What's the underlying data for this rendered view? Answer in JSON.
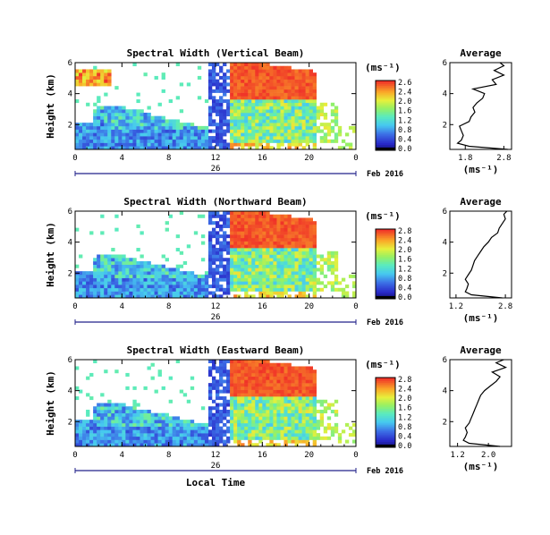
{
  "chart_data": [
    {
      "type": "heatmap",
      "title": "Spectral Width (Vertical Beam)",
      "ylabel": "Height (km)",
      "yticks": [
        "6",
        "4",
        "2"
      ],
      "ylim": [
        0.4,
        6
      ],
      "xticks": [
        "0",
        "4",
        "8",
        "12",
        "16",
        "20",
        "0"
      ],
      "xlim": [
        0,
        24
      ],
      "day_label": "26",
      "date_label": "Feb 2016",
      "colorbar_unit": "(ms⁻¹)",
      "colorbar_ticks": [
        "2.6",
        "2.4",
        "2.0",
        "1.6",
        "1.2",
        "0.8",
        "0.4",
        "0.0"
      ],
      "avg_title": "Average",
      "avg_xticks": [
        "1.8",
        "2.8"
      ],
      "avg_xlabel": "(ms⁻¹)",
      "avg_yticks": [
        "6",
        "4",
        "2"
      ],
      "avg_xlim": [
        1.4,
        3.0
      ],
      "avg_profile": {
        "height": [
          0.4,
          0.6,
          0.8,
          1.0,
          1.3,
          1.6,
          1.9,
          2.2,
          2.5,
          2.8,
          3.1,
          3.4,
          3.7,
          4.0,
          4.3,
          4.6,
          4.9,
          5.2,
          5.5,
          5.8,
          6.0
        ],
        "value": [
          2.9,
          1.9,
          1.6,
          1.7,
          1.75,
          1.7,
          1.65,
          1.9,
          1.95,
          2.05,
          2.0,
          2.1,
          2.25,
          2.3,
          2.0,
          2.6,
          2.5,
          2.8,
          2.55,
          2.8,
          2.7
        ]
      }
    },
    {
      "type": "heatmap",
      "title": "Spectral Width (Northward Beam)",
      "ylabel": "Height (km)",
      "yticks": [
        "6",
        "4",
        "2"
      ],
      "ylim": [
        0.4,
        6
      ],
      "xticks": [
        "0",
        "4",
        "8",
        "12",
        "16",
        "20",
        "0"
      ],
      "xlim": [
        0,
        24
      ],
      "day_label": "26",
      "date_label": "Feb 2016",
      "colorbar_unit": "(ms⁻¹)",
      "colorbar_ticks": [
        "2.8",
        "2.4",
        "2.0",
        "1.6",
        "1.2",
        "0.8",
        "0.4",
        "0.0"
      ],
      "avg_title": "Average",
      "avg_xticks": [
        "1.2",
        "2.8"
      ],
      "avg_xlabel": "(ms⁻¹)",
      "avg_yticks": [
        "6",
        "4",
        "2"
      ],
      "avg_xlim": [
        1.0,
        3.0
      ],
      "avg_profile": {
        "height": [
          0.4,
          0.6,
          0.8,
          1.0,
          1.3,
          1.6,
          1.9,
          2.2,
          2.5,
          2.8,
          3.1,
          3.4,
          3.7,
          4.0,
          4.3,
          4.6,
          4.9,
          5.2,
          5.5,
          5.8,
          6.0
        ],
        "value": [
          2.7,
          1.7,
          1.5,
          1.55,
          1.6,
          1.5,
          1.6,
          1.7,
          1.75,
          1.8,
          1.9,
          2.0,
          2.1,
          2.25,
          2.35,
          2.55,
          2.6,
          2.7,
          2.8,
          2.75,
          2.85
        ]
      }
    },
    {
      "type": "heatmap",
      "title": "Spectral Width (Eastward Beam)",
      "ylabel": "Height (km)",
      "yticks": [
        "6",
        "4",
        "2"
      ],
      "ylim": [
        0.4,
        6
      ],
      "xticks": [
        "0",
        "4",
        "8",
        "12",
        "16",
        "20",
        "0"
      ],
      "xlim": [
        0,
        24
      ],
      "day_label": "26",
      "date_label": "Feb 2016",
      "xlabel": "Local Time",
      "colorbar_unit": "(ms⁻¹)",
      "colorbar_ticks": [
        "2.8",
        "2.4",
        "2.0",
        "1.6",
        "1.2",
        "0.8",
        "0.4",
        "0.0"
      ],
      "avg_title": "Average",
      "avg_xticks": [
        "1.2",
        "2.0"
      ],
      "avg_xlabel": "(ms⁻¹)",
      "avg_yticks": [
        "6",
        "4",
        "2"
      ],
      "avg_xlim": [
        1.0,
        2.6
      ],
      "avg_profile": {
        "height": [
          0.4,
          0.6,
          0.8,
          1.0,
          1.3,
          1.6,
          1.9,
          2.2,
          2.5,
          2.8,
          3.1,
          3.4,
          3.7,
          4.0,
          4.3,
          4.6,
          4.9,
          5.2,
          5.5,
          5.8,
          6.0
        ],
        "value": [
          2.3,
          1.5,
          1.35,
          1.4,
          1.45,
          1.4,
          1.5,
          1.55,
          1.6,
          1.65,
          1.7,
          1.75,
          1.8,
          1.9,
          2.05,
          2.2,
          2.3,
          2.1,
          2.45,
          2.2,
          2.4
        ]
      }
    }
  ]
}
